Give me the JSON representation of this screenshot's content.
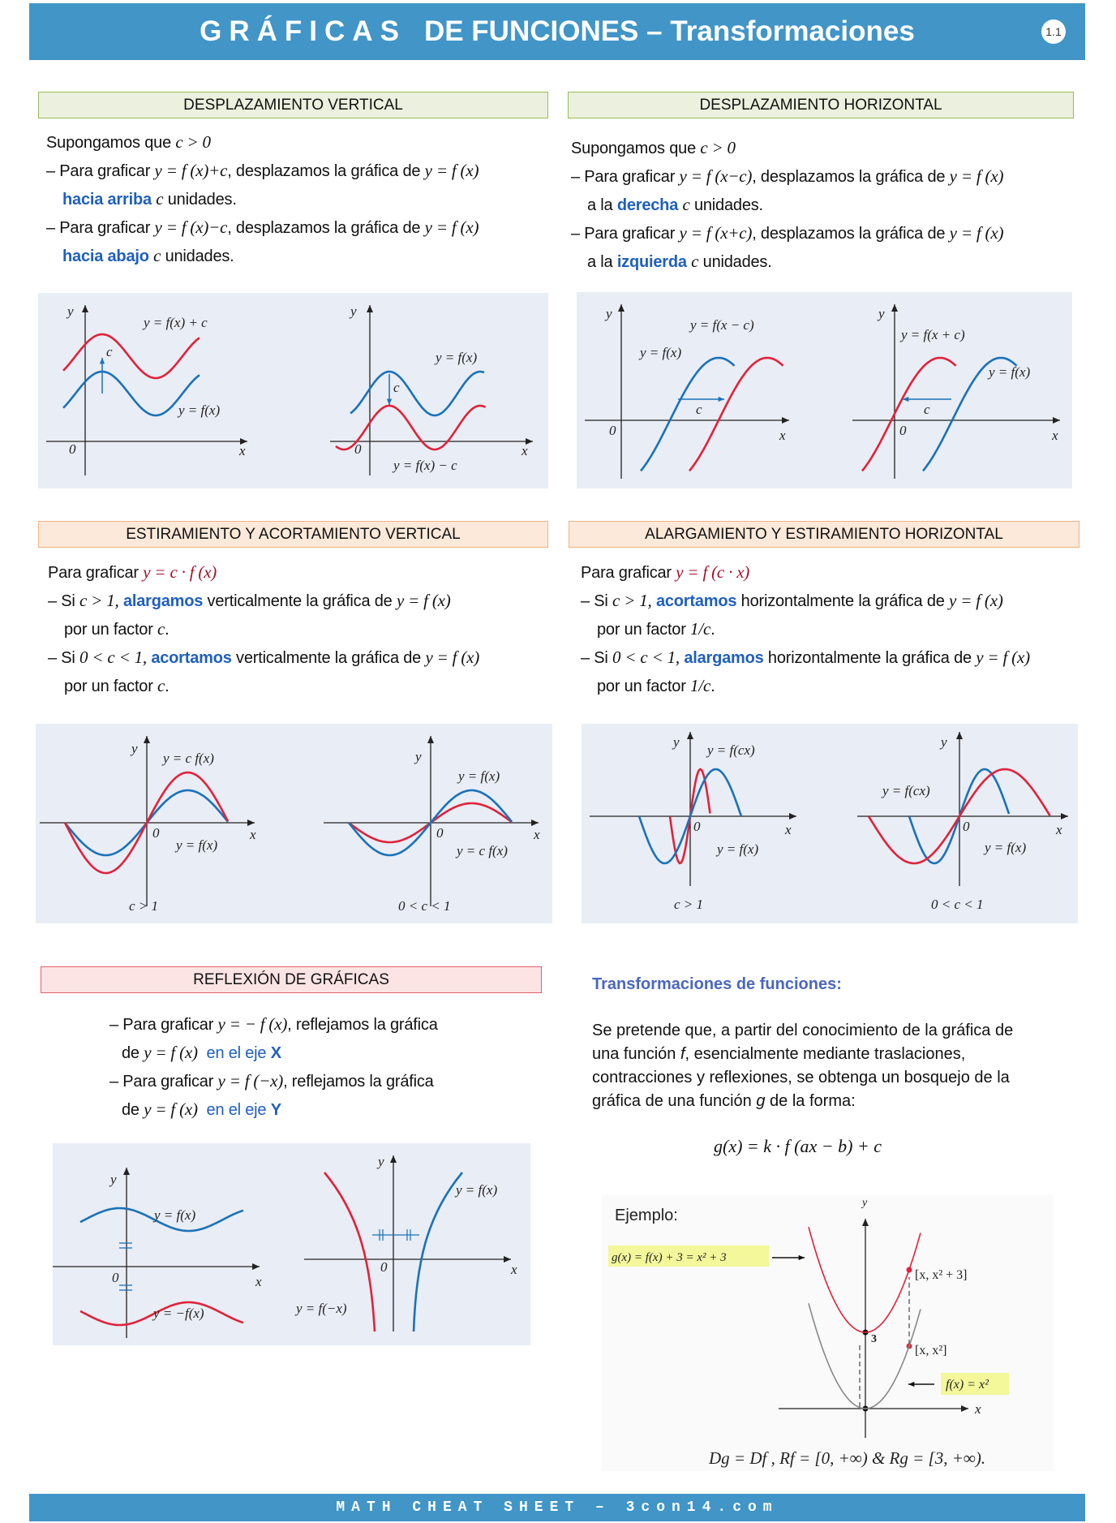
{
  "header": {
    "title_spaced": "GRÁFICAS",
    "title_rest": "DE FUNCIONES – Transformaciones",
    "badge": "1.1"
  },
  "vertical_shift": {
    "title": "DESPLAZAMIENTO VERTICAL",
    "intro": "Supongamos que ",
    "intro_math": "c > 0",
    "l1": [
      "– Para graficar ",
      "y = f (x)+c",
      ",  desplazamos la gráfica de ",
      "y = f (x)"
    ],
    "l2": [
      "hacia arriba",
      "c",
      " unidades."
    ],
    "l3": [
      "– Para graficar ",
      "y = f (x)−c",
      ",  desplazamos la gráfica de ",
      "y = f (x)"
    ],
    "l4": [
      "hacia abajo",
      "c",
      " unidades."
    ],
    "graph": {
      "y": "y",
      "x": "x",
      "zero": "0",
      "c": "c",
      "upper": "y = f(x) + c",
      "lower": "y = f(x)",
      "g2_upper": "y = f(x)",
      "g2_lower": "y = f(x) − c"
    }
  },
  "horizontal_shift": {
    "title": "DESPLAZAMIENTO HORIZONTAL",
    "intro": "Supongamos que ",
    "intro_math": "c > 0",
    "l1": [
      "– Para graficar ",
      "y = f (x−c)",
      ",  desplazamos la gráfica de ",
      "y = f (x)"
    ],
    "l2": [
      "a la ",
      "derecha",
      "c",
      " unidades."
    ],
    "l3": [
      "– Para graficar ",
      "y = f (x+c)",
      ",  desplazamos la gráfica de ",
      "y = f (x)"
    ],
    "l4": [
      "a la ",
      "izquierda",
      "c",
      " unidades."
    ],
    "graph": {
      "y": "y",
      "x": "x",
      "zero": "0",
      "c": "c",
      "g1_shifted": "y = f(x − c)",
      "g1_orig": "y = f(x)",
      "g2_shifted": "y = f(x + c)",
      "g2_orig": "y = f(x)"
    }
  },
  "vertical_stretch": {
    "title": "ESTIRAMIENTO Y ACORTAMIENTO VERTICAL",
    "l0": [
      "Para graficar ",
      "y = c · f (x)"
    ],
    "l1": [
      "– Si ",
      "c > 1,",
      "alargamos",
      " verticalmente la gráfica de ",
      "y = f (x)"
    ],
    "l2": [
      "por un factor ",
      "c",
      "."
    ],
    "l3": [
      "– Si ",
      "0 < c < 1,",
      "acortamos",
      " verticalmente la gráfica de ",
      "y = f (x)"
    ],
    "l4": [
      "por un factor ",
      "c",
      "."
    ],
    "graph": {
      "y": "y",
      "x": "x",
      "zero": "0",
      "g1_red": "y = c f(x)",
      "g1_blue": "y = f(x)",
      "g1_caption": "c > 1",
      "g2_blue": "y = f(x)",
      "g2_red": "y = c f(x)",
      "g2_caption": "0 < c < 1"
    }
  },
  "horizontal_stretch": {
    "title": "ALARGAMIENTO Y ESTIRAMIENTO HORIZONTAL",
    "l0": [
      "Para graficar ",
      "y = f (c · x)"
    ],
    "l1": [
      "– Si ",
      "c > 1,",
      "acortamos",
      " horizontalmente la gráfica de ",
      "y = f (x)"
    ],
    "l2": [
      "por un factor ",
      "1/c",
      "."
    ],
    "l3": [
      "– Si ",
      "0 < c < 1,",
      "alargamos",
      " horizontalmente la gráfica de ",
      "y = f (x)"
    ],
    "l4": [
      "por un factor ",
      "1/c",
      "."
    ],
    "graph": {
      "y": "y",
      "x": "x",
      "zero": "0",
      "g1_red": "y = f(cx)",
      "g1_blue": "y = f(x)",
      "g1_caption": "c > 1",
      "g2_red": "y = f(cx)",
      "g2_blue": "y = f(x)",
      "g2_caption": "0 < c < 1"
    }
  },
  "reflection": {
    "title": "REFLEXIÓN DE GRÁFICAS",
    "l1": [
      "– Para graficar ",
      "y = − f (x)",
      ",  reflejamos la gráfica"
    ],
    "l2": [
      "de ",
      "y = f (x)",
      "en el eje ",
      "X"
    ],
    "l3": [
      "– Para graficar ",
      "y = f (−x)",
      ",  reflejamos la gráfica"
    ],
    "l4": [
      "de ",
      "y = f (x)",
      "en el eje ",
      "Y"
    ],
    "graph": {
      "y": "y",
      "x": "x",
      "zero": "0",
      "g1_blue": "y = f(x)",
      "g1_red": "y = −f(x)",
      "g2_blue": "y = f(x)",
      "g2_red": "y = f(−x)"
    }
  },
  "transformations": {
    "title": "Transformaciones de funciones:",
    "paragraph": [
      "Se pretende que, a partir del conocimiento de la gráfica de",
      "una función ",
      "f",
      ", esencialmente mediante traslaciones,",
      "contracciones y reflexiones, se obtenga un bosquejo de la",
      "gráfica de una función ",
      "g",
      " de la forma:"
    ],
    "formula": "g(x) = k · f (ax − b) + c",
    "example": {
      "label": "Ejemplo:",
      "g_label": "g(x) = f(x) + 3 = x² + 3",
      "f_label": "f(x) = x²",
      "pt_upper": "[x, x² + 3]",
      "pt_lower": "[x, x²]",
      "three": "3",
      "x": "x",
      "y": "y",
      "domain": "Dg = Df , Rf = [0, +∞)  &  Rg = [3, +∞)."
    }
  },
  "footer": "MATH CHEAT SHEET – 3con14.com",
  "colors": {
    "header": "#4195c7",
    "blue_curve": "#1a72b8",
    "red_curve": "#e0223a",
    "highlight_blue": "#1f5fbf"
  }
}
